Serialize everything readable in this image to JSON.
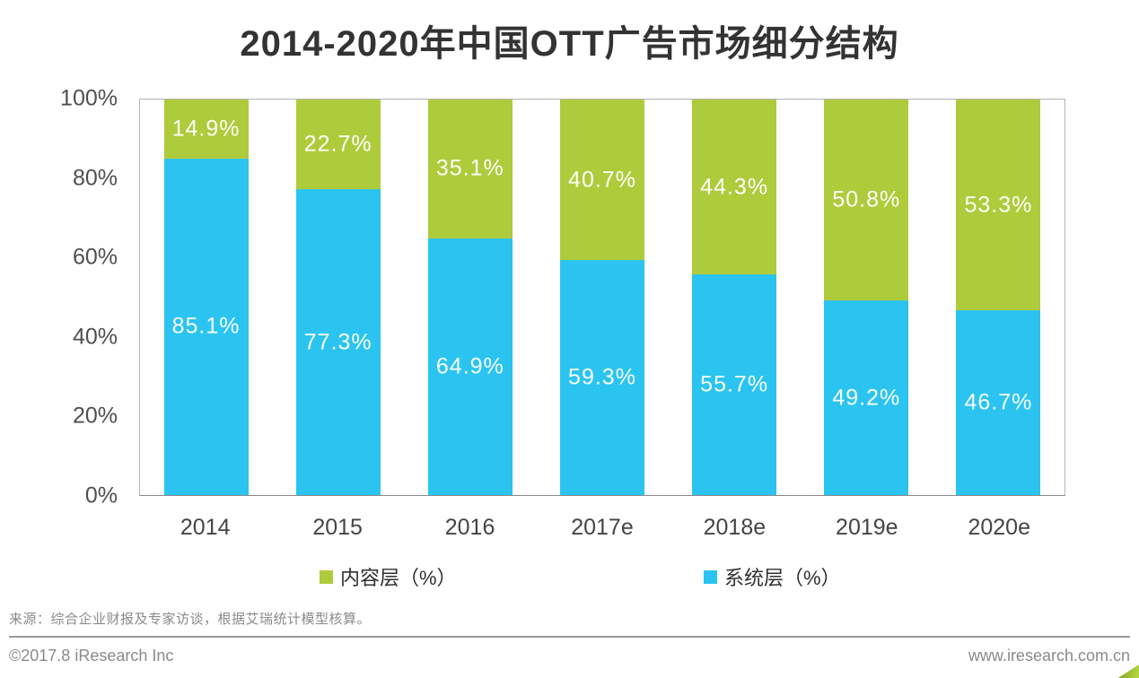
{
  "title": "2014-2020年中国OTT广告市场细分结构",
  "chart_data": {
    "type": "bar",
    "stacked": true,
    "orientation": "vertical",
    "categories": [
      "2014",
      "2015",
      "2016",
      "2017e",
      "2018e",
      "2019e",
      "2020e"
    ],
    "series": [
      {
        "name": "内容层（%）",
        "color": "#AECB3C",
        "stack_position": "top",
        "values": [
          14.9,
          22.7,
          35.1,
          40.7,
          44.3,
          50.8,
          53.3
        ]
      },
      {
        "name": "系统层（%）",
        "color": "#2BC4F0",
        "stack_position": "bottom",
        "values": [
          85.1,
          77.3,
          64.9,
          59.3,
          55.7,
          49.2,
          46.7
        ]
      }
    ],
    "ylim": [
      0,
      100
    ],
    "yticks": [
      "100%",
      "80%",
      "60%",
      "40%",
      "20%",
      "0%"
    ],
    "grid": false,
    "legend_position": "bottom",
    "data_label_color": "#FFFFFF"
  },
  "legend": {
    "content_layer": "内容层（%）",
    "system_layer": "系统层（%）"
  },
  "source_note": "来源：综合企业财报及专家访谈，根据艾瑞统计模型核算。",
  "footer": {
    "left": "©2017.8 iResearch Inc",
    "right": "www.iresearch.com.cn"
  },
  "colors": {
    "green": "#AECB3C",
    "blue": "#2BC4F0",
    "title_text": "#333333",
    "axis_text": "#4F4F4F",
    "footer_text": "#8A8A8A"
  }
}
